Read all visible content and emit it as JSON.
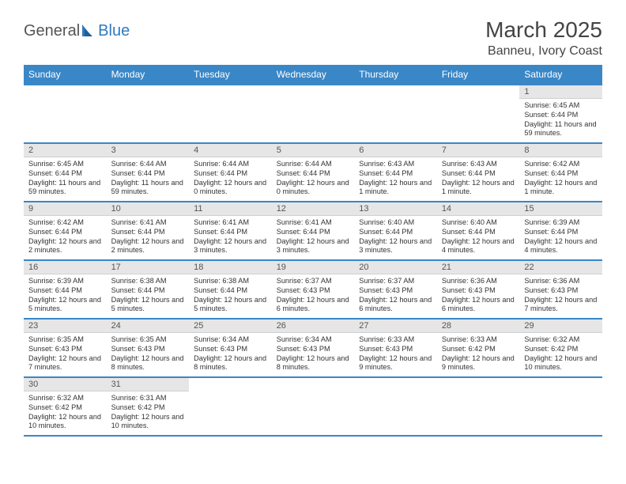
{
  "logo": {
    "word1": "General",
    "word2": "Blue"
  },
  "title": "March 2025",
  "location": "Banneu, Ivory Coast",
  "dayHeaders": [
    "Sunday",
    "Monday",
    "Tuesday",
    "Wednesday",
    "Thursday",
    "Friday",
    "Saturday"
  ],
  "colors": {
    "headerBg": "#3a87c7",
    "headerText": "#ffffff",
    "dayNumBg": "#e6e6e6",
    "rowBorder": "#3a87c7",
    "logoBlue": "#2f7abf",
    "logoGray": "#555555",
    "pageBg": "#ffffff"
  },
  "weeks": [
    [
      {
        "n": "",
        "sr": "",
        "ss": "",
        "dl": ""
      },
      {
        "n": "",
        "sr": "",
        "ss": "",
        "dl": ""
      },
      {
        "n": "",
        "sr": "",
        "ss": "",
        "dl": ""
      },
      {
        "n": "",
        "sr": "",
        "ss": "",
        "dl": ""
      },
      {
        "n": "",
        "sr": "",
        "ss": "",
        "dl": ""
      },
      {
        "n": "",
        "sr": "",
        "ss": "",
        "dl": ""
      },
      {
        "n": "1",
        "sr": "6:45 AM",
        "ss": "6:44 PM",
        "dl": "11 hours and 59 minutes."
      }
    ],
    [
      {
        "n": "2",
        "sr": "6:45 AM",
        "ss": "6:44 PM",
        "dl": "11 hours and 59 minutes."
      },
      {
        "n": "3",
        "sr": "6:44 AM",
        "ss": "6:44 PM",
        "dl": "11 hours and 59 minutes."
      },
      {
        "n": "4",
        "sr": "6:44 AM",
        "ss": "6:44 PM",
        "dl": "12 hours and 0 minutes."
      },
      {
        "n": "5",
        "sr": "6:44 AM",
        "ss": "6:44 PM",
        "dl": "12 hours and 0 minutes."
      },
      {
        "n": "6",
        "sr": "6:43 AM",
        "ss": "6:44 PM",
        "dl": "12 hours and 1 minute."
      },
      {
        "n": "7",
        "sr": "6:43 AM",
        "ss": "6:44 PM",
        "dl": "12 hours and 1 minute."
      },
      {
        "n": "8",
        "sr": "6:42 AM",
        "ss": "6:44 PM",
        "dl": "12 hours and 1 minute."
      }
    ],
    [
      {
        "n": "9",
        "sr": "6:42 AM",
        "ss": "6:44 PM",
        "dl": "12 hours and 2 minutes."
      },
      {
        "n": "10",
        "sr": "6:41 AM",
        "ss": "6:44 PM",
        "dl": "12 hours and 2 minutes."
      },
      {
        "n": "11",
        "sr": "6:41 AM",
        "ss": "6:44 PM",
        "dl": "12 hours and 3 minutes."
      },
      {
        "n": "12",
        "sr": "6:41 AM",
        "ss": "6:44 PM",
        "dl": "12 hours and 3 minutes."
      },
      {
        "n": "13",
        "sr": "6:40 AM",
        "ss": "6:44 PM",
        "dl": "12 hours and 3 minutes."
      },
      {
        "n": "14",
        "sr": "6:40 AM",
        "ss": "6:44 PM",
        "dl": "12 hours and 4 minutes."
      },
      {
        "n": "15",
        "sr": "6:39 AM",
        "ss": "6:44 PM",
        "dl": "12 hours and 4 minutes."
      }
    ],
    [
      {
        "n": "16",
        "sr": "6:39 AM",
        "ss": "6:44 PM",
        "dl": "12 hours and 5 minutes."
      },
      {
        "n": "17",
        "sr": "6:38 AM",
        "ss": "6:44 PM",
        "dl": "12 hours and 5 minutes."
      },
      {
        "n": "18",
        "sr": "6:38 AM",
        "ss": "6:44 PM",
        "dl": "12 hours and 5 minutes."
      },
      {
        "n": "19",
        "sr": "6:37 AM",
        "ss": "6:43 PM",
        "dl": "12 hours and 6 minutes."
      },
      {
        "n": "20",
        "sr": "6:37 AM",
        "ss": "6:43 PM",
        "dl": "12 hours and 6 minutes."
      },
      {
        "n": "21",
        "sr": "6:36 AM",
        "ss": "6:43 PM",
        "dl": "12 hours and 6 minutes."
      },
      {
        "n": "22",
        "sr": "6:36 AM",
        "ss": "6:43 PM",
        "dl": "12 hours and 7 minutes."
      }
    ],
    [
      {
        "n": "23",
        "sr": "6:35 AM",
        "ss": "6:43 PM",
        "dl": "12 hours and 7 minutes."
      },
      {
        "n": "24",
        "sr": "6:35 AM",
        "ss": "6:43 PM",
        "dl": "12 hours and 8 minutes."
      },
      {
        "n": "25",
        "sr": "6:34 AM",
        "ss": "6:43 PM",
        "dl": "12 hours and 8 minutes."
      },
      {
        "n": "26",
        "sr": "6:34 AM",
        "ss": "6:43 PM",
        "dl": "12 hours and 8 minutes."
      },
      {
        "n": "27",
        "sr": "6:33 AM",
        "ss": "6:43 PM",
        "dl": "12 hours and 9 minutes."
      },
      {
        "n": "28",
        "sr": "6:33 AM",
        "ss": "6:42 PM",
        "dl": "12 hours and 9 minutes."
      },
      {
        "n": "29",
        "sr": "6:32 AM",
        "ss": "6:42 PM",
        "dl": "12 hours and 10 minutes."
      }
    ],
    [
      {
        "n": "30",
        "sr": "6:32 AM",
        "ss": "6:42 PM",
        "dl": "12 hours and 10 minutes."
      },
      {
        "n": "31",
        "sr": "6:31 AM",
        "ss": "6:42 PM",
        "dl": "12 hours and 10 minutes."
      },
      {
        "n": "",
        "sr": "",
        "ss": "",
        "dl": ""
      },
      {
        "n": "",
        "sr": "",
        "ss": "",
        "dl": ""
      },
      {
        "n": "",
        "sr": "",
        "ss": "",
        "dl": ""
      },
      {
        "n": "",
        "sr": "",
        "ss": "",
        "dl": ""
      },
      {
        "n": "",
        "sr": "",
        "ss": "",
        "dl": ""
      }
    ]
  ],
  "labels": {
    "sunrise": "Sunrise:",
    "sunset": "Sunset:",
    "daylight": "Daylight:"
  }
}
